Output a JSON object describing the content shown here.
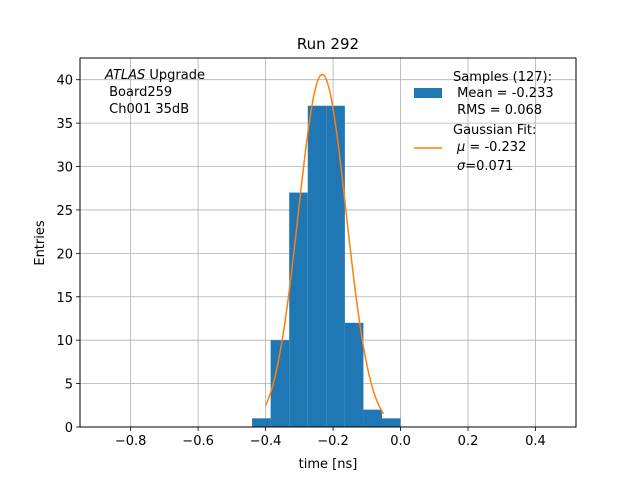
{
  "chart_data": {
    "type": "bar",
    "title": "Run 292",
    "xlabel": "time [ns]",
    "ylabel": "Entries",
    "xlim": [
      -0.95,
      0.52
    ],
    "ylim": [
      0,
      42.5
    ],
    "grid": true,
    "x_ticks": [
      {
        "value": -0.8,
        "label": "−0.8"
      },
      {
        "value": -0.6,
        "label": "−0.6"
      },
      {
        "value": -0.4,
        "label": "−0.4"
      },
      {
        "value": -0.2,
        "label": "−0.2"
      },
      {
        "value": 0.0,
        "label": "0.0"
      },
      {
        "value": 0.2,
        "label": "0.2"
      },
      {
        "value": 0.4,
        "label": "0.4"
      }
    ],
    "y_ticks": [
      {
        "value": 0,
        "label": "0"
      },
      {
        "value": 5,
        "label": "5"
      },
      {
        "value": 10,
        "label": "10"
      },
      {
        "value": 15,
        "label": "15"
      },
      {
        "value": 20,
        "label": "20"
      },
      {
        "value": 25,
        "label": "25"
      },
      {
        "value": 30,
        "label": "30"
      },
      {
        "value": 35,
        "label": "35"
      },
      {
        "value": 40,
        "label": "40"
      }
    ],
    "histogram": {
      "bin_edges": [
        -0.44,
        -0.385,
        -0.33,
        -0.275,
        -0.22,
        -0.165,
        -0.11,
        -0.055,
        0.0
      ],
      "counts": [
        1,
        10,
        27,
        37,
        37,
        12,
        2,
        1
      ],
      "color": "#1f77b4"
    },
    "gaussian_fit": {
      "mu": -0.232,
      "sigma": 0.071,
      "amplitude": 40.6,
      "x_range": [
        -0.4,
        -0.05
      ],
      "color": "#ff7f0e"
    },
    "annotation": {
      "line1_italic": "ATLAS",
      "line1_rest": " Upgrade",
      "line2": " Board259",
      "line3": " Ch001 35dB"
    },
    "legend": {
      "placement": "top-right",
      "samples_title": "Samples (127):",
      "samples_mean": " Mean = -0.233",
      "samples_rms": " RMS = 0.068",
      "fit_title": "Gaussian Fit:",
      "fit_mu_symbol": "μ",
      "fit_mu_value": " = -0.232",
      "fit_sigma_symbol": "σ",
      "fit_sigma_value": "=0.071"
    }
  }
}
